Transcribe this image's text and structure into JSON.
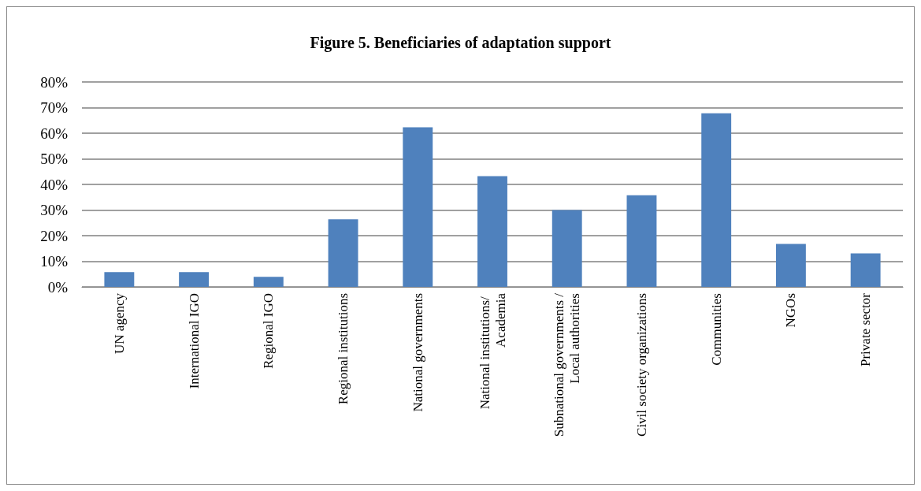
{
  "chart_data": {
    "type": "bar",
    "title": "Figure 5. Beneficiaries of adaptation support",
    "categories": [
      "UN agency",
      "International IGO",
      "Regional IGO",
      "Regional institutions",
      "National governments",
      "National institutions/ Academia",
      "Subnational governments / Local authorities",
      "Civil society organizations",
      "Communities",
      "NGOs",
      "Private sector"
    ],
    "values": [
      5.8,
      5.8,
      3.9,
      26.4,
      62.3,
      43.2,
      30.0,
      35.8,
      67.8,
      16.8,
      13.1
    ],
    "color": "#4f81bd",
    "ylim": [
      0,
      80
    ],
    "yticks": [
      {
        "value": 0,
        "label": "0%"
      },
      {
        "value": 10,
        "label": "10%"
      },
      {
        "value": 20,
        "label": "20%"
      },
      {
        "value": 30,
        "label": "30%"
      },
      {
        "value": 40,
        "label": "40%"
      },
      {
        "value": 50,
        "label": "50%"
      },
      {
        "value": 60,
        "label": "60%"
      },
      {
        "value": 70,
        "label": "70%"
      },
      {
        "value": 80,
        "label": "80%"
      }
    ],
    "grid": "y"
  }
}
